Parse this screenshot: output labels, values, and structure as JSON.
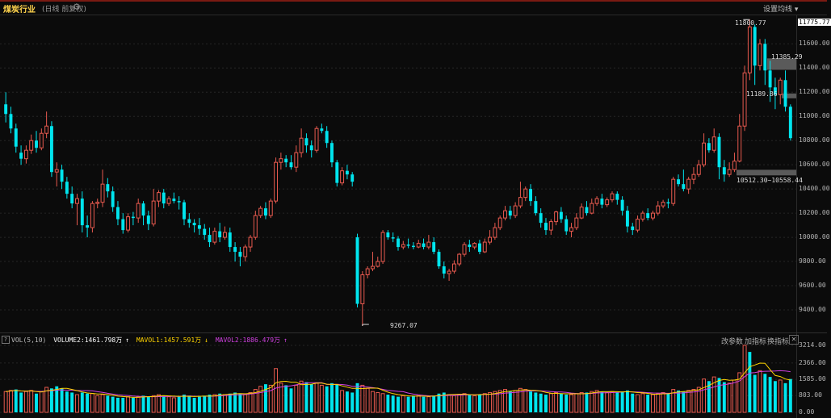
{
  "header": {
    "title": "煤炭行业",
    "subtitle": "(日线 前复权)",
    "settings_icon": "gear-icon",
    "set_ma_label": "设置均线",
    "dropdown_icon": "caret-down-icon"
  },
  "price_axis": {
    "ticks": [
      "11775.77",
      "11600.00",
      "11400.00",
      "11200.00",
      "11000.00",
      "10800.00",
      "10600.00",
      "10400.00",
      "10200.00",
      "10000.00",
      "9800.00",
      "9600.00",
      "9400.00"
    ]
  },
  "volume_axis": {
    "ticks": [
      "3214.00",
      "2366.00",
      "1585.00",
      "803.00",
      "0.00"
    ]
  },
  "annotations": {
    "high": "11800.77",
    "low": "9267.07",
    "gap1": "11385.29",
    "gap2": "11189.86",
    "gap3": "10512.30~10558.44"
  },
  "volume_legend": {
    "name": "VOL(5,10)",
    "volume": "VOLUME2:1461.798万",
    "ma1": "MAVOL1:1457.591万",
    "ma2": "MAVOL2:1886.479万",
    "up_arrow": "↑",
    "down_arrow": "↓"
  },
  "volume_buttons": {
    "params": "改参数",
    "add": "加指标",
    "swap": "换指标"
  },
  "colors": {
    "up": "#e85a4f",
    "down": "#00e5ee",
    "ma5": "#ffd400",
    "ma10": "#d040e0",
    "title": "#ffd34d"
  },
  "chart_data": {
    "type": "candlestick",
    "ylim": [
      9267.07,
      11800.77
    ],
    "candles": [
      [
        11100,
        11020,
        11200,
        10950
      ],
      [
        11020,
        10900,
        11080,
        10860
      ],
      [
        10900,
        10750,
        10940,
        10700
      ],
      [
        10700,
        10650,
        10760,
        10600
      ],
      [
        10650,
        10720,
        10760,
        10610
      ],
      [
        10720,
        10800,
        10850,
        10690
      ],
      [
        10800,
        10740,
        10880,
        10700
      ],
      [
        10740,
        10860,
        10900,
        10720
      ],
      [
        10860,
        10920,
        11040,
        10820
      ],
      [
        10920,
        10540,
        10960,
        10500
      ],
      [
        10540,
        10560,
        10620,
        10420
      ],
      [
        10560,
        10460,
        10600,
        10400
      ],
      [
        10460,
        10360,
        10500,
        10320
      ],
      [
        10360,
        10280,
        10420,
        10240
      ],
      [
        10280,
        10320,
        10360,
        10100
      ],
      [
        10320,
        10100,
        10380,
        10040
      ],
      [
        10100,
        10080,
        10180,
        10000
      ],
      [
        10080,
        10280,
        10300,
        10040
      ],
      [
        10280,
        10290,
        10320,
        10240
      ],
      [
        10290,
        10440,
        10560,
        10250
      ],
      [
        10440,
        10380,
        10490,
        10330
      ],
      [
        10380,
        10250,
        10420,
        10210
      ],
      [
        10250,
        10150,
        10300,
        10100
      ],
      [
        10150,
        10060,
        10200,
        10030
      ],
      [
        10060,
        10170,
        10200,
        10040
      ],
      [
        10170,
        10160,
        10210,
        10100
      ],
      [
        10160,
        10280,
        10320,
        10120
      ],
      [
        10280,
        10180,
        10300,
        10100
      ],
      [
        10180,
        10110,
        10220,
        10060
      ],
      [
        10110,
        10300,
        10400,
        10090
      ],
      [
        10300,
        10370,
        10390,
        10250
      ],
      [
        10370,
        10280,
        10400,
        10240
      ],
      [
        10280,
        10320,
        10340,
        10260
      ],
      [
        10320,
        10300,
        10370,
        10280
      ],
      [
        10300,
        10290,
        10340,
        10230
      ],
      [
        10290,
        10150,
        10310,
        10100
      ],
      [
        10150,
        10120,
        10200,
        10080
      ],
      [
        10120,
        10100,
        10150,
        10040
      ],
      [
        10100,
        10070,
        10160,
        10020
      ],
      [
        10070,
        10020,
        10110,
        9980
      ],
      [
        10020,
        9960,
        10080,
        9920
      ],
      [
        9960,
        10050,
        10080,
        9940
      ],
      [
        10050,
        10000,
        10120,
        9960
      ],
      [
        10000,
        10040,
        10090,
        9980
      ],
      [
        10040,
        9920,
        10080,
        9880
      ],
      [
        9920,
        9880,
        9960,
        9800
      ],
      [
        9880,
        9840,
        9920,
        9760
      ],
      [
        9840,
        9920,
        9940,
        9800
      ],
      [
        9920,
        10000,
        10020,
        9880
      ],
      [
        10000,
        10180,
        10220,
        9980
      ],
      [
        10180,
        10240,
        10260,
        10160
      ],
      [
        10240,
        10180,
        10290,
        10150
      ],
      [
        10180,
        10300,
        10320,
        10160
      ],
      [
        10300,
        10620,
        10660,
        10280
      ],
      [
        10620,
        10650,
        10700,
        10560
      ],
      [
        10650,
        10620,
        10680,
        10580
      ],
      [
        10620,
        10580,
        10680,
        10560
      ],
      [
        10580,
        10700,
        10760,
        10540
      ],
      [
        10700,
        10820,
        10900,
        10660
      ],
      [
        10820,
        10760,
        10860,
        10700
      ],
      [
        10760,
        10720,
        10800,
        10660
      ],
      [
        10720,
        10900,
        10920,
        10700
      ],
      [
        10900,
        10880,
        10940,
        10860
      ],
      [
        10880,
        10780,
        10920,
        10740
      ],
      [
        10780,
        10620,
        10800,
        10580
      ],
      [
        10620,
        10450,
        10640,
        10420
      ],
      [
        10450,
        10550,
        10580,
        10430
      ],
      [
        10550,
        10520,
        10600,
        10480
      ],
      [
        10520,
        10460,
        10540,
        10420
      ],
      [
        10000,
        9450,
        10030,
        9420
      ],
      [
        9450,
        9690,
        9720,
        9267
      ],
      [
        9690,
        9740,
        9760,
        9660
      ],
      [
        9740,
        9760,
        9880,
        9720
      ],
      [
        9760,
        9800,
        9840,
        9750
      ],
      [
        9800,
        10040,
        10060,
        9780
      ],
      [
        10040,
        10000,
        10060,
        9980
      ],
      [
        10000,
        9990,
        10040,
        9960
      ],
      [
        9990,
        9920,
        10010,
        9890
      ],
      [
        9920,
        9940,
        9970,
        9900
      ],
      [
        9940,
        9930,
        9990,
        9910
      ],
      [
        9930,
        9920,
        9960,
        9900
      ],
      [
        9920,
        9950,
        9980,
        9910
      ],
      [
        9950,
        9920,
        9990,
        9900
      ],
      [
        9920,
        9960,
        10020,
        9900
      ],
      [
        9960,
        9880,
        10000,
        9860
      ],
      [
        9880,
        9760,
        9900,
        9740
      ],
      [
        9760,
        9700,
        9800,
        9660
      ],
      [
        9700,
        9720,
        9740,
        9640
      ],
      [
        9720,
        9780,
        9810,
        9700
      ],
      [
        9780,
        9860,
        9870,
        9760
      ],
      [
        9860,
        9940,
        9960,
        9840
      ],
      [
        9940,
        9920,
        9980,
        9880
      ],
      [
        9920,
        9950,
        9960,
        9900
      ],
      [
        9950,
        9880,
        9980,
        9860
      ],
      [
        9880,
        9960,
        9990,
        9870
      ],
      [
        9960,
        10000,
        10060,
        9940
      ],
      [
        10000,
        10080,
        10120,
        9980
      ],
      [
        10080,
        10160,
        10180,
        10060
      ],
      [
        10160,
        10220,
        10260,
        10140
      ],
      [
        10220,
        10180,
        10260,
        10150
      ],
      [
        10180,
        10260,
        10290,
        10160
      ],
      [
        10260,
        10330,
        10460,
        10240
      ],
      [
        10330,
        10400,
        10420,
        10300
      ],
      [
        10400,
        10300,
        10440,
        10260
      ],
      [
        10300,
        10200,
        10340,
        10180
      ],
      [
        10200,
        10120,
        10240,
        10080
      ],
      [
        10120,
        10060,
        10160,
        10020
      ],
      [
        10060,
        10130,
        10150,
        10020
      ],
      [
        10130,
        10210,
        10220,
        10100
      ],
      [
        10210,
        10150,
        10250,
        10120
      ],
      [
        10150,
        10050,
        10180,
        10020
      ],
      [
        10050,
        10080,
        10120,
        10000
      ],
      [
        10080,
        10160,
        10200,
        10060
      ],
      [
        10160,
        10250,
        10280,
        10150
      ],
      [
        10250,
        10200,
        10300,
        10180
      ],
      [
        10200,
        10280,
        10320,
        10190
      ],
      [
        10280,
        10320,
        10340,
        10260
      ],
      [
        10320,
        10270,
        10360,
        10240
      ],
      [
        10270,
        10310,
        10330,
        10250
      ],
      [
        10310,
        10360,
        10380,
        10290
      ],
      [
        10360,
        10310,
        10380,
        10270
      ],
      [
        10310,
        10220,
        10340,
        10180
      ],
      [
        10220,
        10090,
        10260,
        10040
      ],
      [
        10090,
        10060,
        10120,
        10020
      ],
      [
        10060,
        10150,
        10180,
        10040
      ],
      [
        10150,
        10200,
        10220,
        10130
      ],
      [
        10200,
        10160,
        10240,
        10140
      ],
      [
        10160,
        10200,
        10220,
        10140
      ],
      [
        10200,
        10260,
        10300,
        10180
      ],
      [
        10260,
        10290,
        10310,
        10240
      ],
      [
        10290,
        10280,
        10320,
        10240
      ],
      [
        10280,
        10480,
        10500,
        10260
      ],
      [
        10480,
        10440,
        10520,
        10420
      ],
      [
        10440,
        10400,
        10560,
        10380
      ],
      [
        10400,
        10480,
        10500,
        10360
      ],
      [
        10480,
        10520,
        10580,
        10440
      ],
      [
        10520,
        10600,
        10640,
        10500
      ],
      [
        10600,
        10780,
        10860,
        10580
      ],
      [
        10780,
        10720,
        10820,
        10700
      ],
      [
        10720,
        10830,
        10900,
        10700
      ],
      [
        10830,
        10580,
        10860,
        10480
      ],
      [
        10580,
        10520,
        10640,
        10460
      ],
      [
        10520,
        10560,
        10620,
        10500
      ],
      [
        10560,
        10630,
        10700,
        10540
      ],
      [
        10630,
        10920,
        11020,
        10620
      ],
      [
        10920,
        11360,
        11420,
        10880
      ],
      [
        11360,
        11740,
        11800.77,
        11300
      ],
      [
        11740,
        11420,
        11760,
        11260
      ],
      [
        11420,
        11600,
        11640,
        11380
      ],
      [
        11600,
        11380,
        11640,
        11260
      ],
      [
        11380,
        11240,
        11460,
        11120
      ],
      [
        11240,
        11180,
        11320,
        11060
      ],
      [
        11180,
        11300,
        11320,
        11100
      ],
      [
        11300,
        11080,
        11380,
        11040
      ],
      [
        11080,
        10820,
        11100,
        10800
      ]
    ],
    "volume": [
      [
        1000,
        1
      ],
      [
        1050,
        1
      ],
      [
        1100,
        0
      ],
      [
        950,
        0
      ],
      [
        1000,
        1
      ],
      [
        1050,
        1
      ],
      [
        900,
        0
      ],
      [
        1000,
        1
      ],
      [
        1200,
        1
      ],
      [
        1150,
        0
      ],
      [
        1250,
        0
      ],
      [
        1150,
        0
      ],
      [
        1000,
        0
      ],
      [
        950,
        0
      ],
      [
        850,
        1
      ],
      [
        950,
        0
      ],
      [
        900,
        0
      ],
      [
        900,
        1
      ],
      [
        800,
        1
      ],
      [
        850,
        1
      ],
      [
        800,
        0
      ],
      [
        750,
        0
      ],
      [
        700,
        0
      ],
      [
        700,
        0
      ],
      [
        750,
        1
      ],
      [
        700,
        0
      ],
      [
        750,
        1
      ],
      [
        800,
        0
      ],
      [
        750,
        0
      ],
      [
        800,
        1
      ],
      [
        850,
        1
      ],
      [
        800,
        0
      ],
      [
        750,
        1
      ],
      [
        700,
        1
      ],
      [
        750,
        0
      ],
      [
        850,
        0
      ],
      [
        800,
        0
      ],
      [
        700,
        0
      ],
      [
        750,
        0
      ],
      [
        800,
        0
      ],
      [
        850,
        0
      ],
      [
        850,
        1
      ],
      [
        900,
        0
      ],
      [
        850,
        1
      ],
      [
        900,
        0
      ],
      [
        950,
        0
      ],
      [
        900,
        0
      ],
      [
        850,
        1
      ],
      [
        950,
        1
      ],
      [
        1100,
        1
      ],
      [
        1250,
        1
      ],
      [
        1350,
        0
      ],
      [
        1300,
        1
      ],
      [
        2100,
        1
      ],
      [
        1400,
        1
      ],
      [
        1300,
        0
      ],
      [
        1150,
        0
      ],
      [
        1300,
        1
      ],
      [
        1500,
        1
      ],
      [
        1450,
        0
      ],
      [
        1350,
        0
      ],
      [
        1400,
        1
      ],
      [
        1300,
        1
      ],
      [
        1250,
        0
      ],
      [
        1400,
        0
      ],
      [
        1350,
        0
      ],
      [
        1050,
        1
      ],
      [
        1000,
        0
      ],
      [
        950,
        0
      ],
      [
        1400,
        0
      ],
      [
        1300,
        1
      ],
      [
        1150,
        1
      ],
      [
        1000,
        1
      ],
      [
        950,
        1
      ],
      [
        900,
        1
      ],
      [
        850,
        0
      ],
      [
        800,
        0
      ],
      [
        750,
        0
      ],
      [
        800,
        1
      ],
      [
        750,
        0
      ],
      [
        800,
        0
      ],
      [
        800,
        1
      ],
      [
        750,
        0
      ],
      [
        750,
        1
      ],
      [
        800,
        0
      ],
      [
        900,
        0
      ],
      [
        950,
        0
      ],
      [
        850,
        1
      ],
      [
        800,
        1
      ],
      [
        850,
        1
      ],
      [
        900,
        1
      ],
      [
        850,
        0
      ],
      [
        800,
        1
      ],
      [
        850,
        0
      ],
      [
        900,
        1
      ],
      [
        950,
        1
      ],
      [
        1000,
        1
      ],
      [
        1050,
        1
      ],
      [
        1100,
        1
      ],
      [
        1000,
        0
      ],
      [
        1050,
        1
      ],
      [
        1150,
        1
      ],
      [
        1100,
        1
      ],
      [
        1000,
        0
      ],
      [
        950,
        0
      ],
      [
        900,
        0
      ],
      [
        850,
        0
      ],
      [
        900,
        1
      ],
      [
        950,
        1
      ],
      [
        900,
        0
      ],
      [
        850,
        0
      ],
      [
        850,
        1
      ],
      [
        900,
        1
      ],
      [
        950,
        1
      ],
      [
        950,
        0
      ],
      [
        1000,
        1
      ],
      [
        1050,
        1
      ],
      [
        1000,
        0
      ],
      [
        950,
        1
      ],
      [
        1000,
        1
      ],
      [
        950,
        0
      ],
      [
        1000,
        0
      ],
      [
        1050,
        0
      ],
      [
        900,
        0
      ],
      [
        850,
        1
      ],
      [
        900,
        1
      ],
      [
        850,
        0
      ],
      [
        850,
        1
      ],
      [
        900,
        1
      ],
      [
        950,
        1
      ],
      [
        900,
        0
      ],
      [
        1100,
        1
      ],
      [
        1050,
        0
      ],
      [
        1000,
        0
      ],
      [
        1050,
        1
      ],
      [
        1100,
        1
      ],
      [
        1200,
        1
      ],
      [
        1600,
        1
      ],
      [
        1500,
        0
      ],
      [
        1700,
        1
      ],
      [
        1650,
        0
      ],
      [
        1450,
        0
      ],
      [
        1400,
        1
      ],
      [
        1550,
        1
      ],
      [
        1900,
        1
      ],
      [
        3214,
        1
      ],
      [
        2900,
        0
      ],
      [
        1800,
        0
      ],
      [
        2000,
        1
      ],
      [
        1850,
        0
      ],
      [
        1700,
        0
      ],
      [
        1500,
        0
      ],
      [
        1550,
        1
      ],
      [
        1400,
        0
      ],
      [
        1600,
        0
      ]
    ]
  }
}
